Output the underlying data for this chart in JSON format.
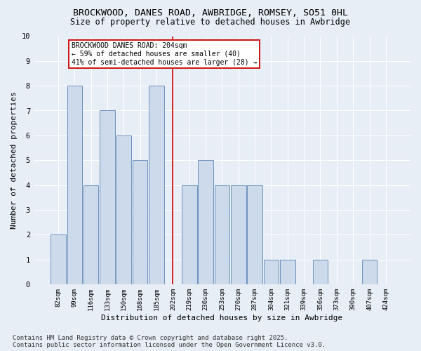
{
  "title": "BROCKWOOD, DANES ROAD, AWBRIDGE, ROMSEY, SO51 0HL",
  "subtitle": "Size of property relative to detached houses in Awbridge",
  "xlabel": "Distribution of detached houses by size in Awbridge",
  "ylabel": "Number of detached properties",
  "categories": [
    "82sqm",
    "99sqm",
    "116sqm",
    "133sqm",
    "150sqm",
    "168sqm",
    "185sqm",
    "202sqm",
    "219sqm",
    "236sqm",
    "253sqm",
    "270sqm",
    "287sqm",
    "304sqm",
    "321sqm",
    "339sqm",
    "356sqm",
    "373sqm",
    "390sqm",
    "407sqm",
    "424sqm"
  ],
  "values": [
    2,
    8,
    4,
    7,
    6,
    5,
    8,
    0,
    4,
    5,
    4,
    4,
    4,
    1,
    1,
    0,
    1,
    0,
    0,
    1,
    0
  ],
  "bar_color": "#ccdaeb",
  "bar_edge_color": "#5b85b5",
  "vline_index": 7,
  "annotation_title": "BROCKWOOD DANES ROAD: 204sqm",
  "annotation_line1": "← 59% of detached houses are smaller (40)",
  "annotation_line2": "41% of semi-detached houses are larger (28) →",
  "annotation_box_color": "#ffffff",
  "annotation_box_edge_color": "#cc0000",
  "vline_color": "#cc0000",
  "ylim": [
    0,
    10
  ],
  "yticks": [
    0,
    1,
    2,
    3,
    4,
    5,
    6,
    7,
    8,
    9,
    10
  ],
  "background_color": "#e8eef6",
  "grid_color": "#ffffff",
  "footer": "Contains HM Land Registry data © Crown copyright and database right 2025.\nContains public sector information licensed under the Open Government Licence v3.0.",
  "title_fontsize": 9.5,
  "subtitle_fontsize": 8.5,
  "ylabel_fontsize": 8,
  "xlabel_fontsize": 8,
  "tick_fontsize": 6.5,
  "annotation_fontsize": 7,
  "footer_fontsize": 6.5
}
